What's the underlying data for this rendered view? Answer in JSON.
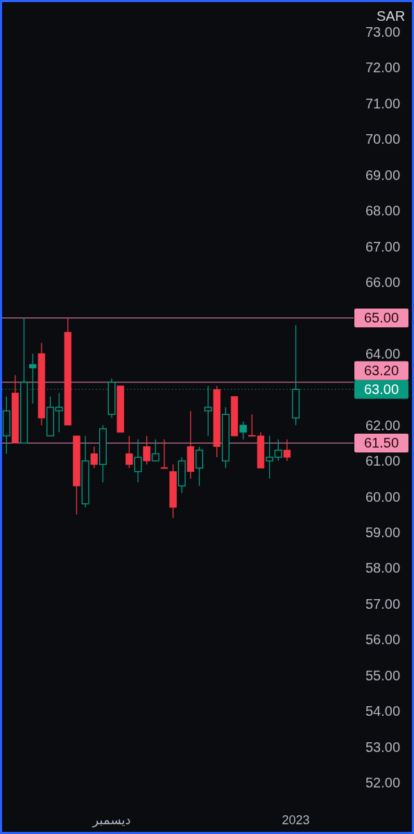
{
  "chart_data": {
    "type": "candlestick",
    "ylabel": "SAR",
    "categories": [
      null,
      null,
      null,
      null,
      null,
      null,
      null,
      null,
      null,
      null,
      null,
      null,
      "ديسمبر",
      null,
      null,
      null,
      null,
      null,
      null,
      null,
      null,
      null,
      null,
      null,
      null,
      null,
      null,
      null,
      null,
      null,
      null,
      null,
      null,
      "2023"
    ],
    "ohlc": [
      [
        61.7,
        62.8,
        61.2,
        62.4
      ],
      [
        62.9,
        63.4,
        61.5,
        61.5
      ],
      [
        61.5,
        65.0,
        61.5,
        63.2
      ],
      [
        63.7,
        64.0,
        62.6,
        63.6
      ],
      [
        64.0,
        64.3,
        62.0,
        62.2
      ],
      [
        61.7,
        62.8,
        61.7,
        62.5
      ],
      [
        62.4,
        62.9,
        61.8,
        62.5
      ],
      [
        64.6,
        65.0,
        62.0,
        62.0
      ],
      [
        61.7,
        61.7,
        59.5,
        60.3
      ],
      [
        59.8,
        61.7,
        59.7,
        61.0
      ],
      [
        61.2,
        61.4,
        60.8,
        60.9
      ],
      [
        60.9,
        62.0,
        60.4,
        61.9
      ],
      [
        62.3,
        63.3,
        62.2,
        63.2
      ],
      [
        63.1,
        63.1,
        61.8,
        61.8
      ],
      [
        61.2,
        61.7,
        60.8,
        60.9
      ],
      [
        60.7,
        61.6,
        60.4,
        61.1
      ],
      [
        61.4,
        61.7,
        60.9,
        61.0
      ],
      [
        61.0,
        61.6,
        61.0,
        61.2
      ],
      [
        60.8,
        61.6,
        60.8,
        60.8
      ],
      [
        60.7,
        60.9,
        59.4,
        59.7
      ],
      [
        60.3,
        61.1,
        60.1,
        61.0
      ],
      [
        61.4,
        62.4,
        60.5,
        60.7
      ],
      [
        60.8,
        61.4,
        60.3,
        61.3
      ],
      [
        62.4,
        63.1,
        61.7,
        62.5
      ],
      [
        63.0,
        63.1,
        61.1,
        61.4
      ],
      [
        61.0,
        62.5,
        60.8,
        62.3
      ],
      [
        62.8,
        62.8,
        61.7,
        61.7
      ],
      [
        62.0,
        62.1,
        61.6,
        61.8
      ],
      [
        61.7,
        62.3,
        61.7,
        61.7
      ],
      [
        61.7,
        61.8,
        60.8,
        60.8
      ],
      [
        61.0,
        61.7,
        60.5,
        61.1
      ],
      [
        61.1,
        61.6,
        61.0,
        61.3
      ],
      [
        61.3,
        61.6,
        61.0,
        61.1
      ],
      [
        62.2,
        64.8,
        62.0,
        63.0
      ]
    ],
    "colors": [
      "#089981",
      "#f23645",
      "#089981",
      "#089981",
      "#f23645",
      "#089981",
      "#089981",
      "#f23645",
      "#f23645",
      "#089981",
      "#f23645",
      "#089981",
      "#089981",
      "#f23645",
      "#f23645",
      "#089981",
      "#f23645",
      "#089981",
      "#f23645",
      "#f23645",
      "#089981",
      "#f23645",
      "#089981",
      "#089981",
      "#f23645",
      "#089981",
      "#f23645",
      "#089981",
      "#f23645",
      "#f23645",
      "#089981",
      "#089981",
      "#f23645",
      "#089981"
    ],
    "ylim": [
      52,
      73
    ],
    "yticks": [
      {
        "value": 52,
        "label": "52.00"
      },
      {
        "value": 53,
        "label": "53.00"
      },
      {
        "value": 54,
        "label": "54.00"
      },
      {
        "value": 55,
        "label": "55.00"
      },
      {
        "value": 56,
        "label": "56.00"
      },
      {
        "value": 57,
        "label": "57.00"
      },
      {
        "value": 58,
        "label": "58.00"
      },
      {
        "value": 59,
        "label": "59.00"
      },
      {
        "value": 60,
        "label": "60.00"
      },
      {
        "value": 61,
        "label": "61.00"
      },
      {
        "value": 62,
        "label": "62.00"
      },
      {
        "value": 64,
        "label": "64.00"
      },
      {
        "value": 66,
        "label": "66.00"
      },
      {
        "value": 67,
        "label": "67.00"
      },
      {
        "value": 68,
        "label": "68.00"
      },
      {
        "value": 69,
        "label": "69.00"
      },
      {
        "value": 70,
        "label": "70.00"
      },
      {
        "value": 71,
        "label": "71.00"
      },
      {
        "value": 72,
        "label": "72.00"
      },
      {
        "value": 73,
        "label": "73.00"
      }
    ],
    "ref_lines": [
      {
        "axis": "y",
        "value": 63,
        "label": "63.00",
        "color": "#089981",
        "line_style": "dotted"
      },
      {
        "axis": "y",
        "value": 65,
        "label": "65.00",
        "color": "#f48fb1",
        "line_style": "solid"
      },
      {
        "axis": "y",
        "value": 63.2,
        "label": "63.20",
        "color": "#f48fb1",
        "line_style": "solid"
      },
      {
        "axis": "y",
        "value": 61.5,
        "label": "61.50",
        "color": "#f48fb1",
        "line_style": "solid"
      }
    ]
  }
}
